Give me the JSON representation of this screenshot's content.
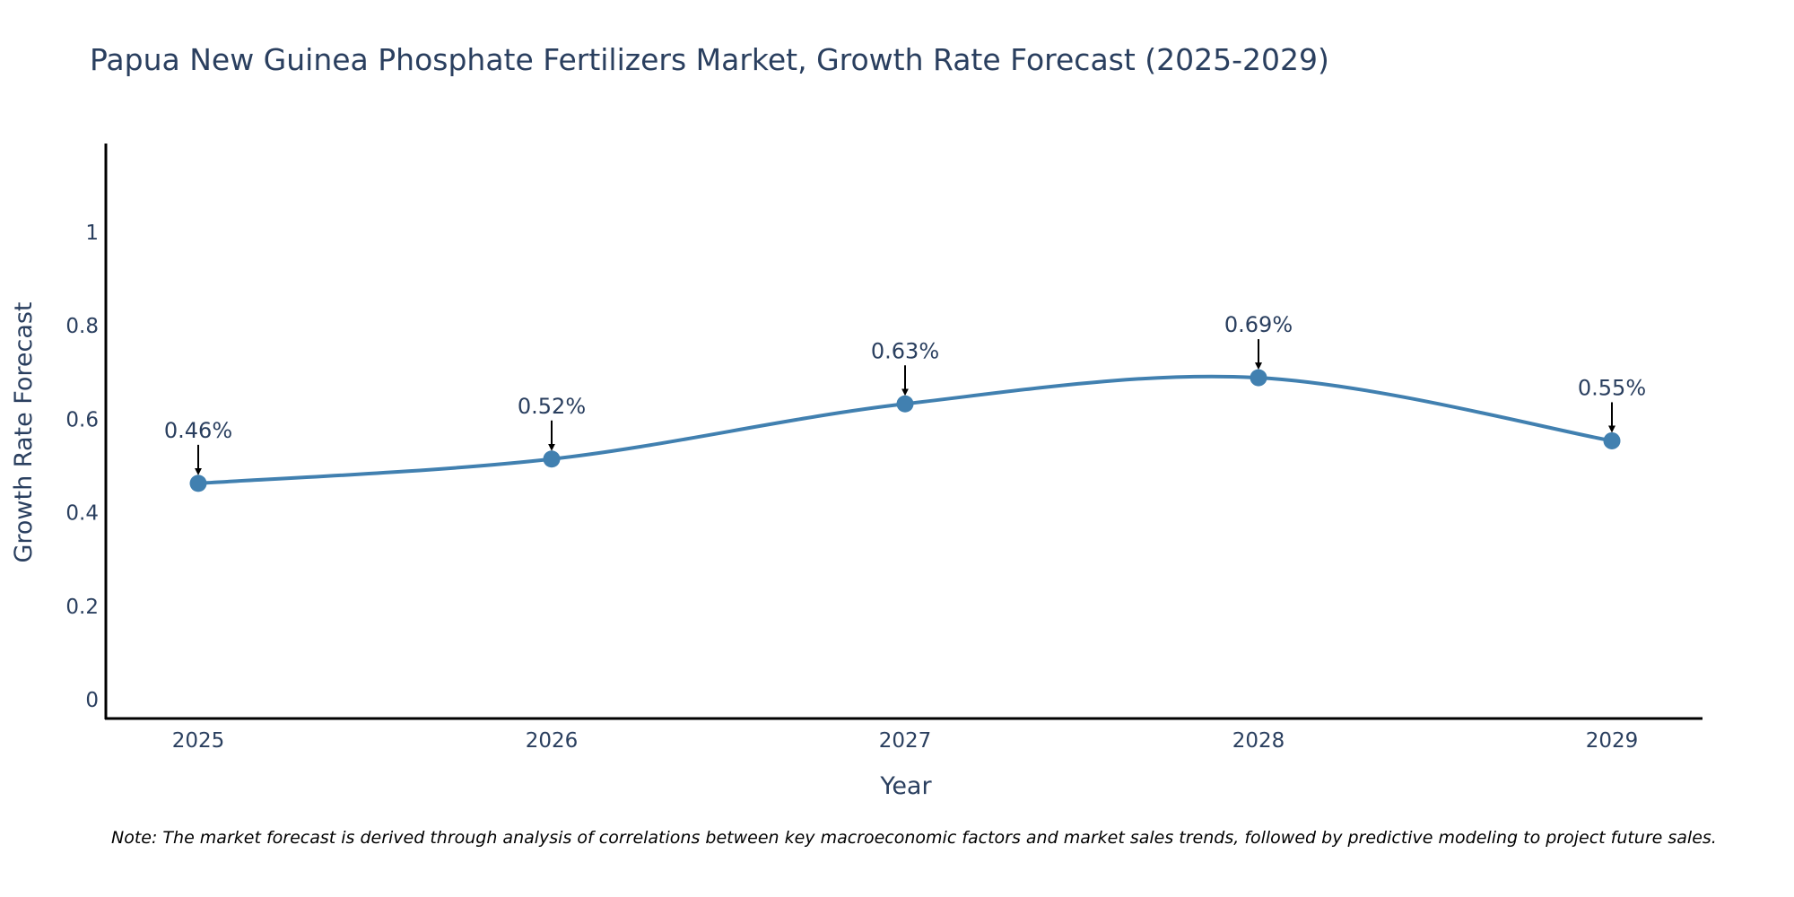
{
  "chart_data": {
    "type": "line",
    "title": "Papua New Guinea Phosphate Fertilizers Market, Growth Rate Forecast (2025-2029)",
    "xlabel": "Year",
    "ylabel": "Growth Rate Forecast",
    "categories": [
      "2025",
      "2026",
      "2027",
      "2028",
      "2029"
    ],
    "values": [
      0.463,
      0.515,
      0.633,
      0.689,
      0.554
    ],
    "data_labels": [
      "0.46%",
      "0.52%",
      "0.63%",
      "0.69%",
      "0.55%"
    ],
    "yticks": [
      0,
      0.2,
      0.4,
      0.6,
      0.8,
      1
    ],
    "ytick_labels": [
      "0",
      "0.2",
      "0.4",
      "0.6",
      "0.8",
      "1"
    ],
    "ylim": [
      -0.04,
      1.19
    ],
    "grid": false,
    "line_shape": "spline",
    "colors": {
      "line": "#4180b0",
      "marker": "#4180b0",
      "axis": "#000000",
      "text": "#2a3f5f",
      "arrow": "#000000"
    },
    "note": "Note: The market forecast is derived through analysis of correlations between key macroeconomic factors and market sales trends, followed by predictive modeling to project future sales."
  }
}
